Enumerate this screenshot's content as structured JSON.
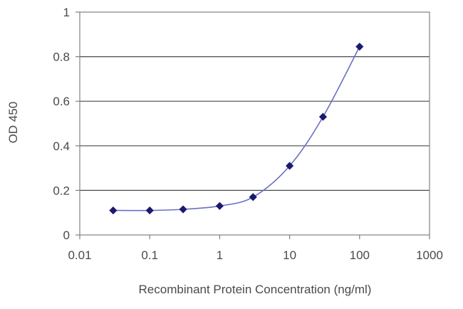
{
  "chart_data": {
    "type": "line",
    "xlabel": "Recombinant Protein Concentration (ng/ml)",
    "ylabel": "OD 450",
    "x_scale": "log",
    "xlim": [
      0.01,
      1000
    ],
    "ylim": [
      0,
      1
    ],
    "x_ticks": [
      0.01,
      0.1,
      1,
      10,
      100,
      1000
    ],
    "x_tick_labels": [
      "0.01",
      "0.1",
      "1",
      "10",
      "100",
      "1000"
    ],
    "y_ticks": [
      0,
      0.2,
      0.4,
      0.6,
      0.8,
      1
    ],
    "y_tick_labels": [
      "0",
      "0.2",
      "0.4",
      "0.6",
      "0.8",
      "1"
    ],
    "grid": "horizontal",
    "legend": "none",
    "series": [
      {
        "x": [
          0.03,
          0.1,
          0.3,
          1,
          3,
          10,
          30,
          100
        ],
        "y": [
          0.11,
          0.11,
          0.115,
          0.13,
          0.17,
          0.31,
          0.53,
          0.845
        ],
        "marker": "diamond",
        "color": "#1a1a6e"
      }
    ],
    "colors": {
      "line": "#6a6fc4",
      "marker": "#1a1a6e",
      "grid": "#4a4a4a",
      "frame": "#808080"
    }
  }
}
